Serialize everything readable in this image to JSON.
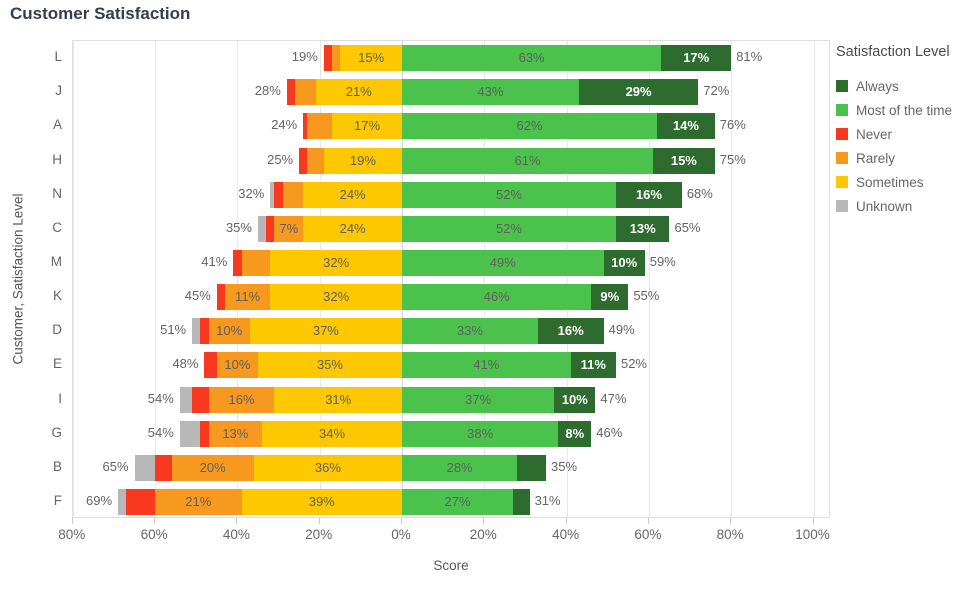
{
  "chart_data": {
    "type": "bar",
    "variant": "diverging_stacked_horizontal",
    "title": "Customer Satisfaction",
    "xlabel": "Score",
    "ylabel": "Customer, Satisfaction Level",
    "legend_title": "Satisfaction Level",
    "legend_position": "right",
    "grid": true,
    "axis": {
      "ticks_pct": [
        -80,
        -60,
        -40,
        -20,
        0,
        20,
        40,
        60,
        80,
        100
      ],
      "tick_labels": [
        "80%",
        "60%",
        "40%",
        "20%",
        "0%",
        "20%",
        "40%",
        "60%",
        "80%",
        "100%"
      ],
      "xlim_pct": [
        -80,
        104
      ]
    },
    "colors": {
      "always": "#2d6b2e",
      "most": "#4ac24b",
      "never": "#f8391f",
      "rarely": "#f7981f",
      "sometimes": "#fdc800",
      "unknown": "#b8b8b8",
      "title_text": "#333f4d",
      "axis_text": "#666666",
      "bar_label_text": "#5f5f5f",
      "bar_label_on_dark": "#ffffff",
      "total_label_text": "#646464"
    },
    "segment_order": [
      "unknown",
      "never",
      "rarely",
      "sometimes",
      "most",
      "always"
    ],
    "legend": [
      {
        "key": "always",
        "label": "Always"
      },
      {
        "key": "most",
        "label": "Most of the time"
      },
      {
        "key": "never",
        "label": "Never"
      },
      {
        "key": "rarely",
        "label": "Rarely"
      },
      {
        "key": "sometimes",
        "label": "Sometimes"
      },
      {
        "key": "unknown",
        "label": "Unknown"
      }
    ],
    "rows": [
      {
        "customer": "L",
        "values": {
          "unknown": 0,
          "never": 2,
          "rarely": 2,
          "sometimes": 15,
          "most": 63,
          "always": 17
        },
        "segment_labels": {
          "sometimes": "15%",
          "most": "63%",
          "always": "17%"
        },
        "left_total": "19%",
        "right_total": "81%"
      },
      {
        "customer": "J",
        "values": {
          "unknown": 0,
          "never": 2,
          "rarely": 5,
          "sometimes": 21,
          "most": 43,
          "always": 29
        },
        "segment_labels": {
          "sometimes": "21%",
          "most": "43%",
          "always": "29%"
        },
        "left_total": "28%",
        "right_total": "72%"
      },
      {
        "customer": "A",
        "values": {
          "unknown": 0,
          "never": 1,
          "rarely": 6,
          "sometimes": 17,
          "most": 62,
          "always": 14
        },
        "segment_labels": {
          "sometimes": "17%",
          "most": "62%",
          "always": "14%"
        },
        "left_total": "24%",
        "right_total": "76%"
      },
      {
        "customer": "H",
        "values": {
          "unknown": 0,
          "never": 2,
          "rarely": 4,
          "sometimes": 19,
          "most": 61,
          "always": 15
        },
        "segment_labels": {
          "sometimes": "19%",
          "most": "61%",
          "always": "15%"
        },
        "left_total": "25%",
        "right_total": "75%"
      },
      {
        "customer": "N",
        "values": {
          "unknown": 1,
          "never": 2,
          "rarely": 5,
          "sometimes": 24,
          "most": 52,
          "always": 16
        },
        "segment_labels": {
          "sometimes": "24%",
          "most": "52%",
          "always": "16%"
        },
        "left_total": "32%",
        "right_total": "68%"
      },
      {
        "customer": "C",
        "values": {
          "unknown": 2,
          "never": 2,
          "rarely": 7,
          "sometimes": 24,
          "most": 52,
          "always": 13
        },
        "segment_labels": {
          "rarely": "7%",
          "sometimes": "24%",
          "most": "52%",
          "always": "13%"
        },
        "left_total": "35%",
        "right_total": "65%"
      },
      {
        "customer": "M",
        "values": {
          "unknown": 0,
          "never": 2,
          "rarely": 7,
          "sometimes": 32,
          "most": 49,
          "always": 10
        },
        "segment_labels": {
          "sometimes": "32%",
          "most": "49%",
          "always": "10%"
        },
        "left_total": "41%",
        "right_total": "59%"
      },
      {
        "customer": "K",
        "values": {
          "unknown": 0,
          "never": 2,
          "rarely": 11,
          "sometimes": 32,
          "most": 46,
          "always": 9
        },
        "segment_labels": {
          "rarely": "11%",
          "sometimes": "32%",
          "most": "46%",
          "always": "9%"
        },
        "left_total": "45%",
        "right_total": "55%"
      },
      {
        "customer": "D",
        "values": {
          "unknown": 2,
          "never": 2,
          "rarely": 10,
          "sometimes": 37,
          "most": 33,
          "always": 16
        },
        "segment_labels": {
          "rarely": "10%",
          "sometimes": "37%",
          "most": "33%",
          "always": "16%"
        },
        "left_total": "51%",
        "right_total": "49%"
      },
      {
        "customer": "E",
        "values": {
          "unknown": 0,
          "never": 3,
          "rarely": 10,
          "sometimes": 35,
          "most": 41,
          "always": 11
        },
        "segment_labels": {
          "rarely": "10%",
          "sometimes": "35%",
          "most": "41%",
          "always": "11%"
        },
        "left_total": "48%",
        "right_total": "52%"
      },
      {
        "customer": "I",
        "values": {
          "unknown": 3,
          "never": 4,
          "rarely": 16,
          "sometimes": 31,
          "most": 37,
          "always": 10
        },
        "segment_labels": {
          "rarely": "16%",
          "sometimes": "31%",
          "most": "37%",
          "always": "10%"
        },
        "left_total": "54%",
        "right_total": "47%"
      },
      {
        "customer": "G",
        "values": {
          "unknown": 5,
          "never": 2,
          "rarely": 13,
          "sometimes": 34,
          "most": 38,
          "always": 8
        },
        "segment_labels": {
          "rarely": "13%",
          "sometimes": "34%",
          "most": "38%",
          "always": "8%"
        },
        "left_total": "54%",
        "right_total": "46%"
      },
      {
        "customer": "B",
        "values": {
          "unknown": 5,
          "never": 4,
          "rarely": 20,
          "sometimes": 36,
          "most": 28,
          "always": 7
        },
        "segment_labels": {
          "rarely": "20%",
          "sometimes": "36%",
          "most": "28%"
        },
        "left_total": "65%",
        "right_total": "35%"
      },
      {
        "customer": "F",
        "values": {
          "unknown": 2,
          "never": 7,
          "rarely": 21,
          "sometimes": 39,
          "most": 27,
          "always": 4
        },
        "segment_labels": {
          "rarely": "21%",
          "sometimes": "39%",
          "most": "27%"
        },
        "left_total": "69%",
        "right_total": "31%"
      }
    ]
  }
}
